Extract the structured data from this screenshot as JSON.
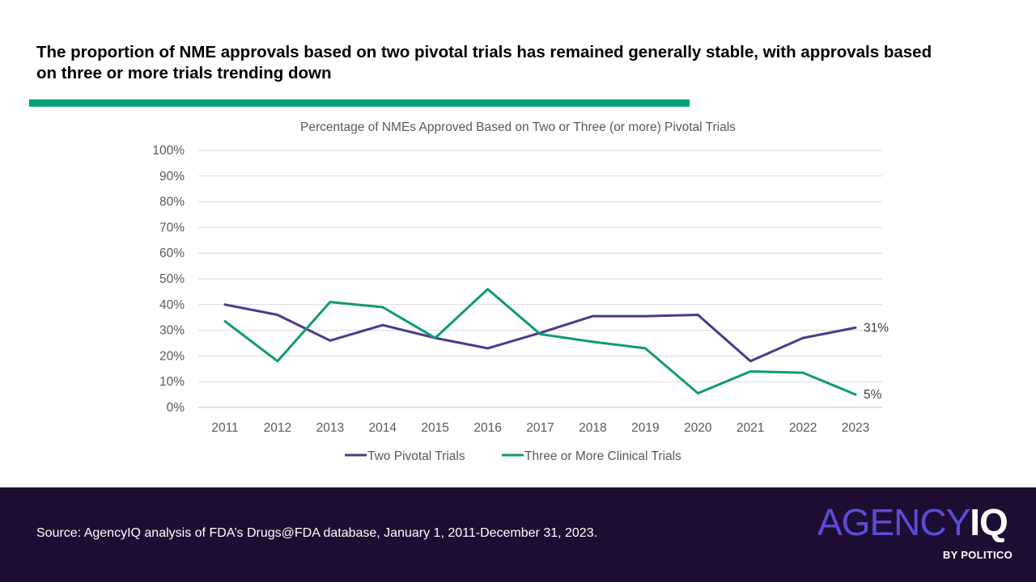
{
  "headline": "The proportion of NME approvals based on two pivotal trials has remained generally stable, with approvals based on three or more trials trending down",
  "colors": {
    "accent": "#00a27a",
    "series_two": "#4b3a8c",
    "series_three": "#0f9a76",
    "footer_bg": "#1d0d33",
    "brand_purple": "#5b4cd6"
  },
  "chart_data": {
    "type": "line",
    "title": "Percentage of NMEs Approved Based on Two or Three (or more) Pivotal Trials",
    "xlabel": "",
    "ylabel": "",
    "categories": [
      "2011",
      "2012",
      "2013",
      "2014",
      "2015",
      "2016",
      "2017",
      "2018",
      "2019",
      "2020",
      "2021",
      "2022",
      "2023"
    ],
    "ylim": [
      0,
      100
    ],
    "y_ticks": [
      "0%",
      "10%",
      "20%",
      "30%",
      "40%",
      "50%",
      "60%",
      "70%",
      "80%",
      "90%",
      "100%"
    ],
    "grid": true,
    "legend_position": "bottom",
    "series": [
      {
        "name": "Two Pivotal Trials",
        "color": "#4b3a8c",
        "values": [
          40,
          36,
          26,
          32,
          27,
          23,
          29,
          35.5,
          35.5,
          36,
          18,
          27,
          31
        ],
        "end_label": "31%"
      },
      {
        "name": "Three or More Clinical Trials",
        "color": "#0f9a76",
        "values": [
          33.5,
          18,
          41,
          39,
          27,
          46,
          28.5,
          25.5,
          23,
          5.5,
          14,
          13.5,
          5
        ],
        "end_label": "5%"
      }
    ]
  },
  "footer": {
    "source": "Source: AgencyIQ analysis of FDA’s Drugs@FDA database, January 1, 2011-December 31, 2023.",
    "brand_agency": "AGENCY",
    "brand_iq": "IQ",
    "brand_by": "BY POLITICO"
  }
}
